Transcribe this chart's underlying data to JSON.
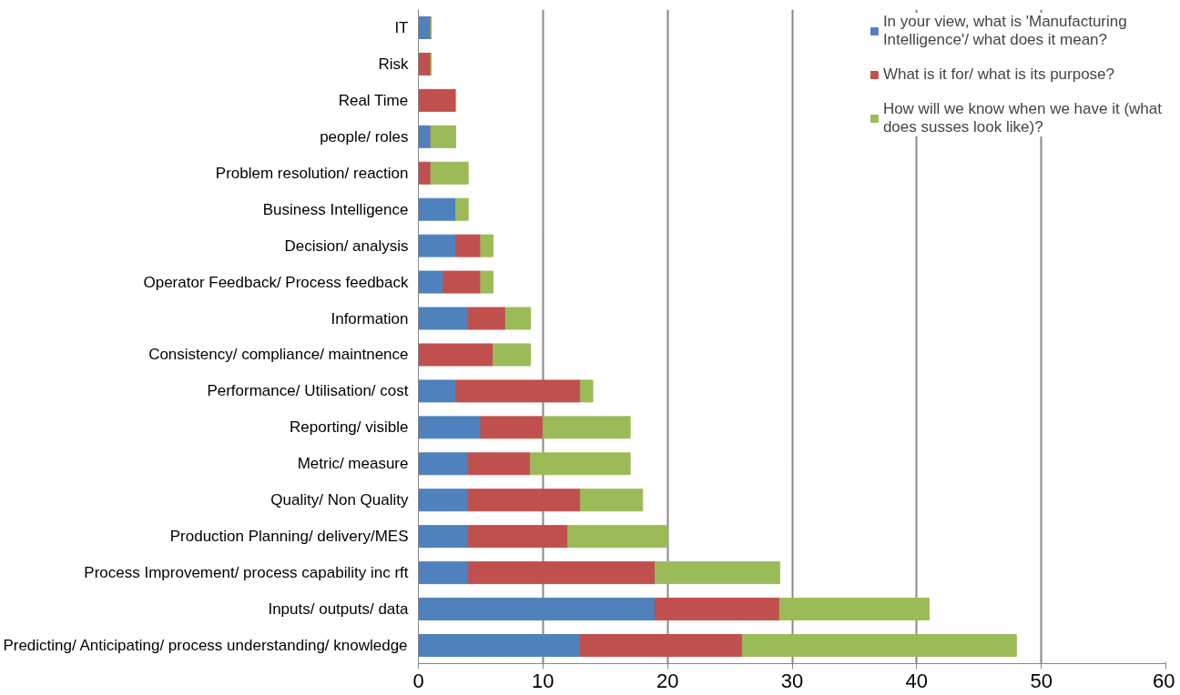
{
  "chart_data": {
    "type": "bar",
    "orientation": "horizontal",
    "stacked": true,
    "categories": [
      "IT",
      "Risk",
      "Real Time",
      "people/ roles",
      "Problem resolution/ reaction",
      "Business Intelligence",
      "Decision/ analysis",
      "Operator Feedback/ Process feedback",
      "Information",
      "Consistency/ compliance/ maintnence",
      "Performance/ Utilisation/ cost",
      "Reporting/ visible",
      "Metric/ measure",
      "Quality/ Non Quality",
      "Production Planning/ delivery/MES",
      "Process Improvement/ process capability inc rft",
      "Inputs/ outputs/ data",
      "Predicting/ Anticipating/ process understanding/ knowledge"
    ],
    "series": [
      {
        "name": "In your view, what is 'Manufacturing Intelligence'/ what does it mean?",
        "color": "#4f81bd",
        "values": [
          1,
          0,
          0,
          1,
          0,
          3,
          3,
          2,
          4,
          0,
          3,
          5,
          4,
          4,
          4,
          4,
          19,
          13
        ]
      },
      {
        "name": "What is it for/ what is its purpose?",
        "color": "#c0504d",
        "values": [
          0,
          1,
          3,
          0,
          1,
          0,
          2,
          3,
          3,
          6,
          10,
          5,
          5,
          9,
          8,
          15,
          10,
          13
        ]
      },
      {
        "name": "How will we know when we have it (what does susses look like)?",
        "color": "#9bbb59",
        "values": [
          0,
          0,
          0,
          2,
          3,
          1,
          1,
          1,
          2,
          3,
          1,
          7,
          8,
          5,
          8,
          10,
          12,
          22
        ]
      }
    ],
    "xlim": [
      0,
      60
    ],
    "xticks": [
      0,
      10,
      20,
      30,
      40,
      50,
      60
    ],
    "grid": "x",
    "legend": "top right"
  }
}
